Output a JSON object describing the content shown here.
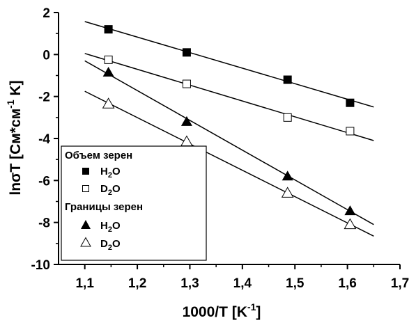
{
  "chart_data": {
    "type": "scatter",
    "xlabel": {
      "base": "1000/T [K",
      "sup": "-1",
      "close": "]"
    },
    "ylabel": {
      "part1": "lnσT [См*см",
      "sup": "-1",
      "part2": " K]"
    },
    "xlim": [
      1.05,
      1.7
    ],
    "ylim": [
      -10,
      2
    ],
    "x_ticks": [
      1.1,
      1.2,
      1.3,
      1.4,
      1.5,
      1.6,
      1.7
    ],
    "x_tick_labels": [
      "1,1",
      "1,2",
      "1,3",
      "1,4",
      "1,5",
      "1,6",
      "1,7"
    ],
    "y_ticks": [
      -10,
      -8,
      -6,
      -4,
      -2,
      0,
      2
    ],
    "y_tick_labels": [
      "-10",
      "-8",
      "-6",
      "-4",
      "-2",
      "0",
      "2"
    ],
    "grid": false,
    "legend": {
      "position": "bottom-left",
      "group1_title": "Объем зерен",
      "group2_title": "Границы зерен"
    },
    "series": [
      {
        "key": "bulk_h2o",
        "label_main": "H",
        "label_sub": "2",
        "label_tail": "O",
        "marker": "square",
        "filled": true,
        "x": [
          1.145,
          1.294,
          1.486,
          1.605
        ],
        "y": [
          1.2,
          0.1,
          -1.2,
          -2.3
        ],
        "fit": [
          [
            1.1,
            1.57
          ],
          [
            1.65,
            -2.5
          ]
        ]
      },
      {
        "key": "bulk_d2o",
        "label_main": "D",
        "label_sub": "2",
        "label_tail": "O",
        "marker": "square",
        "filled": false,
        "x": [
          1.145,
          1.294,
          1.486,
          1.605
        ],
        "y": [
          -0.25,
          -1.4,
          -3.0,
          -3.65
        ],
        "fit": [
          [
            1.1,
            0.05
          ],
          [
            1.65,
            -4.1
          ]
        ]
      },
      {
        "key": "gb_h2o",
        "label_main": "H",
        "label_sub": "2",
        "label_tail": "O",
        "marker": "triangle",
        "filled": true,
        "x": [
          1.145,
          1.294,
          1.486,
          1.605
        ],
        "y": [
          -0.85,
          -3.2,
          -5.8,
          -7.45
        ],
        "fit": [
          [
            1.1,
            -0.3
          ],
          [
            1.65,
            -8.1
          ]
        ]
      },
      {
        "key": "gb_d2o",
        "label_main": "D",
        "label_sub": "2",
        "label_tail": "O",
        "marker": "triangle",
        "filled": false,
        "x": [
          1.145,
          1.294,
          1.486,
          1.605
        ],
        "y": [
          -2.35,
          -4.15,
          -6.6,
          -8.1
        ],
        "fit": [
          [
            1.1,
            -1.75
          ],
          [
            1.65,
            -8.65
          ]
        ]
      }
    ]
  }
}
